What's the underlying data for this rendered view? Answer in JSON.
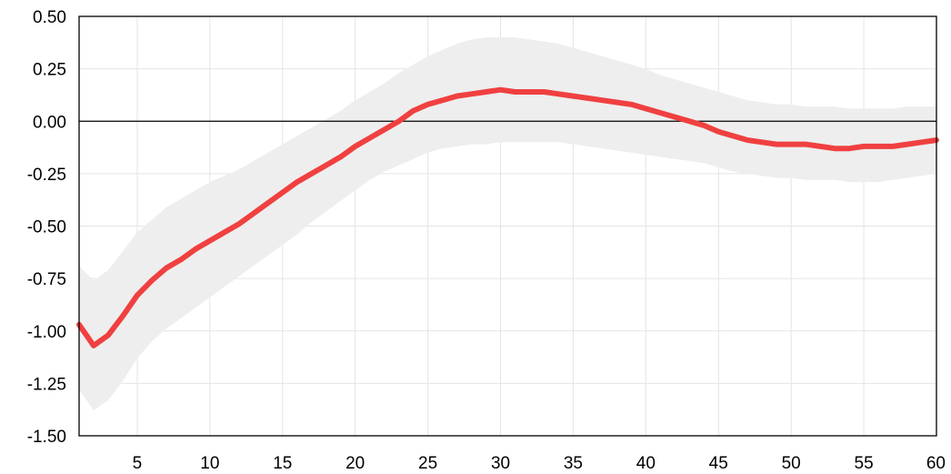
{
  "chart_data": {
    "type": "line",
    "title": "",
    "xlabel": "",
    "ylabel": "",
    "xlim": [
      1,
      60
    ],
    "ylim": [
      -1.5,
      0.5
    ],
    "grid": true,
    "x_ticks": [
      5,
      10,
      15,
      20,
      25,
      30,
      35,
      40,
      45,
      50,
      55,
      60
    ],
    "x_tick_labels": [
      "5",
      "10",
      "15",
      "20",
      "25",
      "30",
      "35",
      "40",
      "45",
      "50",
      "55",
      "60"
    ],
    "y_ticks": [
      0.5,
      0.25,
      0.0,
      -0.25,
      -0.5,
      -0.75,
      -1.0,
      -1.25,
      -1.5
    ],
    "y_tick_labels": [
      "0.50",
      "0.25",
      "0.00",
      "-0.25",
      "-0.50",
      "-0.75",
      "-1.00",
      "-1.25",
      "-1.50"
    ],
    "reference_line_y": 0,
    "colors": {
      "line": "#f04040",
      "band": "#eeeeee",
      "grid": "#e4e4e4",
      "axis": "#000000"
    },
    "x": [
      1,
      2,
      3,
      4,
      5,
      6,
      7,
      8,
      9,
      10,
      11,
      12,
      13,
      14,
      15,
      16,
      17,
      18,
      19,
      20,
      21,
      22,
      23,
      24,
      25,
      26,
      27,
      28,
      29,
      30,
      31,
      32,
      33,
      34,
      35,
      36,
      37,
      38,
      39,
      40,
      41,
      42,
      43,
      44,
      45,
      46,
      47,
      48,
      49,
      50,
      51,
      52,
      53,
      54,
      55,
      56,
      57,
      58,
      59,
      60
    ],
    "series": [
      {
        "values": [
          -0.97,
          -1.07,
          -1.02,
          -0.93,
          -0.83,
          -0.76,
          -0.7,
          -0.66,
          -0.61,
          -0.57,
          -0.53,
          -0.49,
          -0.44,
          -0.39,
          -0.34,
          -0.29,
          -0.25,
          -0.21,
          -0.17,
          -0.12,
          -0.08,
          -0.04,
          0.0,
          0.05,
          0.08,
          0.1,
          0.12,
          0.13,
          0.14,
          0.15,
          0.14,
          0.14,
          0.14,
          0.13,
          0.12,
          0.11,
          0.1,
          0.09,
          0.08,
          0.06,
          0.04,
          0.02,
          0.0,
          -0.02,
          -0.05,
          -0.07,
          -0.09,
          -0.1,
          -0.11,
          -0.11,
          -0.11,
          -0.12,
          -0.13,
          -0.13,
          -0.12,
          -0.12,
          -0.12,
          -0.11,
          -0.1,
          -0.09
        ],
        "lower": [
          -1.28,
          -1.38,
          -1.33,
          -1.24,
          -1.13,
          -1.05,
          -0.99,
          -0.94,
          -0.89,
          -0.84,
          -0.79,
          -0.74,
          -0.69,
          -0.64,
          -0.59,
          -0.54,
          -0.48,
          -0.43,
          -0.38,
          -0.33,
          -0.28,
          -0.24,
          -0.21,
          -0.18,
          -0.15,
          -0.13,
          -0.12,
          -0.11,
          -0.11,
          -0.1,
          -0.1,
          -0.1,
          -0.1,
          -0.1,
          -0.11,
          -0.12,
          -0.13,
          -0.14,
          -0.15,
          -0.16,
          -0.17,
          -0.18,
          -0.19,
          -0.2,
          -0.22,
          -0.24,
          -0.25,
          -0.26,
          -0.27,
          -0.27,
          -0.28,
          -0.28,
          -0.28,
          -0.29,
          -0.29,
          -0.29,
          -0.28,
          -0.27,
          -0.26,
          -0.25
        ],
        "upper": [
          -0.69,
          -0.76,
          -0.71,
          -0.62,
          -0.53,
          -0.47,
          -0.41,
          -0.37,
          -0.33,
          -0.29,
          -0.26,
          -0.23,
          -0.19,
          -0.15,
          -0.11,
          -0.07,
          -0.03,
          0.01,
          0.05,
          0.1,
          0.14,
          0.18,
          0.23,
          0.27,
          0.31,
          0.34,
          0.37,
          0.39,
          0.4,
          0.4,
          0.4,
          0.39,
          0.38,
          0.37,
          0.35,
          0.33,
          0.31,
          0.29,
          0.27,
          0.25,
          0.22,
          0.2,
          0.18,
          0.16,
          0.14,
          0.12,
          0.1,
          0.09,
          0.08,
          0.08,
          0.07,
          0.07,
          0.07,
          0.06,
          0.06,
          0.06,
          0.06,
          0.07,
          0.07,
          0.07
        ]
      }
    ]
  }
}
